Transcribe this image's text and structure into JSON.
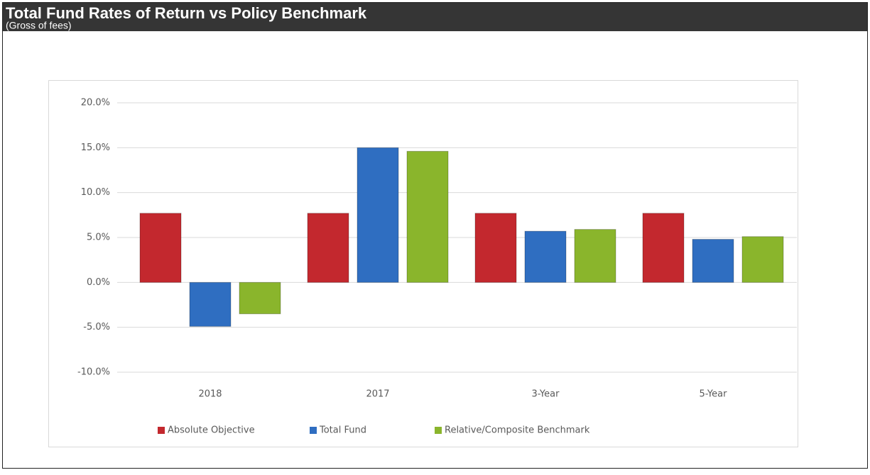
{
  "chart_data": {
    "type": "bar",
    "title": "Total Fund Rates of Return vs Policy Benchmark",
    "subtitle": "(Gross of fees)",
    "categories": [
      "2018",
      "2017",
      "3-Year",
      "5-Year"
    ],
    "series": [
      {
        "name": "Absolute Objective",
        "color": "#c3282e",
        "values": [
          7.7,
          7.7,
          7.7,
          7.7
        ]
      },
      {
        "name": "Total Fund",
        "color": "#2f6ec1",
        "values": [
          -4.9,
          15.0,
          5.7,
          4.8
        ]
      },
      {
        "name": "Relative/Composite Benchmark",
        "color": "#8ab52c",
        "values": [
          -3.5,
          14.6,
          5.9,
          5.1
        ]
      }
    ],
    "ylim": [
      -10,
      20
    ],
    "yticks": [
      {
        "value": -10,
        "label": "-10.0%"
      },
      {
        "value": -5,
        "label": "-5.0%"
      },
      {
        "value": 0,
        "label": "0.0%"
      },
      {
        "value": 5,
        "label": "5.0%"
      },
      {
        "value": 10,
        "label": "10.0%"
      },
      {
        "value": 15,
        "label": "15.0%"
      },
      {
        "value": 20,
        "label": "20.0%"
      }
    ],
    "grid": true,
    "legend": "bottom"
  }
}
